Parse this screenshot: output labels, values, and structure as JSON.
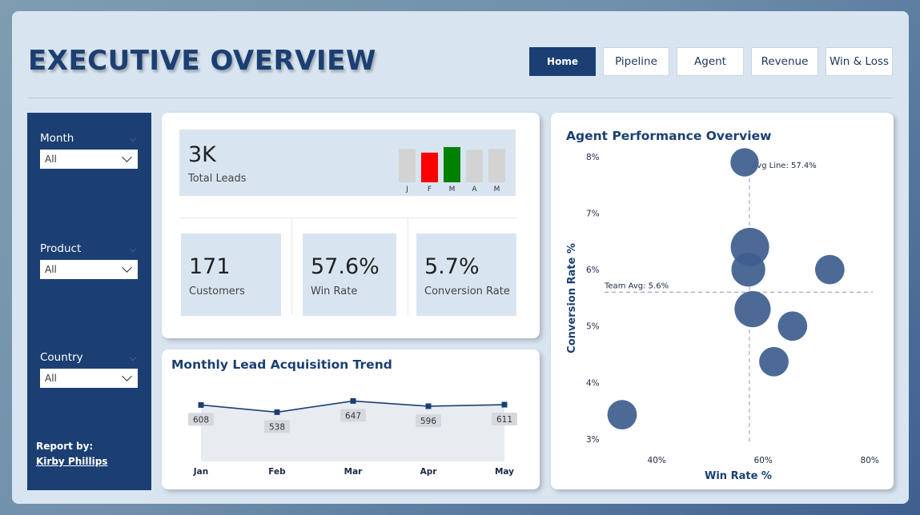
{
  "header": {
    "title": "EXECUTIVE OVERVIEW"
  },
  "nav": {
    "tabs": [
      {
        "label": "Home",
        "active": true
      },
      {
        "label": "Pipeline",
        "active": false
      },
      {
        "label": "Agent",
        "active": false
      },
      {
        "label": "Revenue",
        "active": false
      },
      {
        "label": "Win & Loss",
        "active": false
      }
    ]
  },
  "filters": [
    {
      "label": "Month",
      "value": "All"
    },
    {
      "label": "Product",
      "value": "All"
    },
    {
      "label": "Country",
      "value": "All"
    }
  ],
  "report": {
    "by_label": "Report by:",
    "author": "Kirby Phillips"
  },
  "kpis": {
    "total_leads": {
      "value": "3K",
      "label": "Total Leads"
    },
    "mini_chart": {
      "categories": [
        "J",
        "F",
        "M",
        "A",
        "M"
      ],
      "values": [
        0.72,
        0.64,
        0.76,
        0.7,
        0.72
      ],
      "colors": [
        "#d3d3d3",
        "#ff0000",
        "#008000",
        "#d3d3d3",
        "#d3d3d3"
      ]
    },
    "customers": {
      "value": "171",
      "label": "Customers"
    },
    "win_rate": {
      "value": "57.6%",
      "label": "Win Rate"
    },
    "conversion_rate": {
      "value": "5.7%",
      "label": "Conversion Rate"
    }
  },
  "trend": {
    "title": "Monthly Lead Acquisition Trend"
  },
  "scatter": {
    "title": "Agent Performance Overview"
  },
  "colors": {
    "brand": "#1b3f73",
    "bubble": "#3f5f8f",
    "background": "#d8e5f1"
  },
  "chart_data": [
    {
      "type": "area",
      "title": "Monthly Lead Acquisition Trend",
      "categories": [
        "Jan",
        "Feb",
        "Mar",
        "Apr",
        "May"
      ],
      "values": [
        608,
        538,
        647,
        596,
        611
      ],
      "ylim": [
        0,
        700
      ],
      "grid": false,
      "data_labels": true
    },
    {
      "type": "scatter",
      "title": "Agent Performance Overview",
      "xlabel": "Win Rate %",
      "ylabel": "Conversion Rate %",
      "xticks": [
        "40%",
        "60%",
        "80%"
      ],
      "yticks": [
        "3%",
        "4%",
        "5%",
        "6%",
        "7%",
        "8%"
      ],
      "xlim": [
        32,
        81
      ],
      "ylim": [
        3,
        8
      ],
      "points": [
        {
          "x": 56.5,
          "y": 7.9,
          "size": 0.55
        },
        {
          "x": 57.5,
          "y": 6.4,
          "size": 1.0
        },
        {
          "x": 57.2,
          "y": 6.0,
          "size": 0.8
        },
        {
          "x": 72.5,
          "y": 6.0,
          "size": 0.6
        },
        {
          "x": 58.0,
          "y": 5.3,
          "size": 0.9
        },
        {
          "x": 65.5,
          "y": 5.0,
          "size": 0.6
        },
        {
          "x": 62.0,
          "y": 4.37,
          "size": 0.6
        },
        {
          "x": 33.5,
          "y": 3.43,
          "size": 0.6
        }
      ],
      "reference_lines": [
        {
          "axis": "x",
          "value": 57.4,
          "label": "Avg Line: 57.4%"
        },
        {
          "axis": "y",
          "value": 5.6,
          "label": "Team Avg: 5.6%"
        }
      ]
    }
  ]
}
